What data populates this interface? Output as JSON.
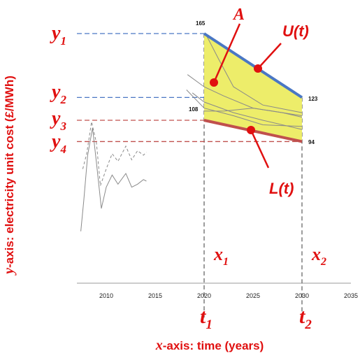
{
  "chart_data": {
    "type": "line",
    "xlabel_prefix": "x",
    "xlabel_rest": "-axis: time (years)",
    "ylabel_prefix": "y",
    "ylabel_rest": "-axis: electricity unit cost (£/MWh)",
    "xlim": [
      2007,
      2035
    ],
    "x_ticks": [
      "2010",
      "2015",
      "2020",
      "2025",
      "2030",
      "2035"
    ],
    "upper_bound": {
      "name": "U(t)",
      "x": [
        2020,
        2030
      ],
      "y": [
        165,
        123
      ],
      "color": "#4a77c4"
    },
    "lower_bound": {
      "name": "L(t)",
      "x": [
        2020,
        2030
      ],
      "y": [
        108,
        94
      ],
      "color": "#c0504d"
    },
    "region": {
      "name": "A",
      "color": "#eded6a"
    },
    "value_labels": [
      "165",
      "123",
      "108",
      "94"
    ],
    "y_levels": [
      {
        "symbol": "y",
        "sub": "1",
        "value": 165
      },
      {
        "symbol": "y",
        "sub": "2",
        "value": 123
      },
      {
        "symbol": "y",
        "sub": "3",
        "value": 108
      },
      {
        "symbol": "y",
        "sub": "4",
        "value": 94
      }
    ],
    "x_markers": [
      {
        "symbol": "x",
        "sub": "1",
        "value": 2020
      },
      {
        "symbol": "x",
        "sub": "2",
        "value": 2030
      }
    ],
    "t_markers": [
      {
        "symbol": "t",
        "sub": "1",
        "value": 2020
      },
      {
        "symbol": "t",
        "sub": "2",
        "value": 2030
      }
    ],
    "grey_projections": [
      {
        "x": [
          2018.3,
          2020,
          2022,
          2025,
          2030
        ],
        "y": [
          138,
          130,
          124,
          116,
          111
        ]
      },
      {
        "x": [
          2018.2,
          2020,
          2023,
          2026,
          2030
        ],
        "y": [
          128,
          116,
          111,
          105,
          104
        ]
      },
      {
        "x": [
          2018.8,
          2020,
          2023,
          2026,
          2030
        ],
        "y": [
          126,
          120,
          113,
          108,
          102
        ]
      },
      {
        "x": [
          2020.3,
          2021.5,
          2023,
          2026,
          2030
        ],
        "y": [
          163,
          148,
          130,
          118,
          113
        ]
      },
      {
        "x": [
          2020,
          2022,
          2025,
          2028,
          2030
        ],
        "y": [
          114,
          114,
          116,
          113,
          110
        ]
      }
    ],
    "grey_history": [
      {
        "x": [
          2007.4,
          2007.7,
          2008.1,
          2008.6,
          2009.0,
          2009.5,
          2010.0,
          2010.6,
          2011.2,
          2012.0,
          2012.6,
          2013.2,
          2013.8,
          2014.1
        ],
        "y": [
          35,
          55,
          85,
          103,
          80,
          50,
          64,
          72,
          66,
          73,
          64,
          66,
          69,
          68
        ],
        "dash": false
      },
      {
        "x": [
          2007.6,
          2008.0,
          2008.5,
          2009.0,
          2009.4,
          2010.0,
          2010.6,
          2011.2,
          2012.0,
          2012.6,
          2013.2,
          2013.8,
          2014.1
        ],
        "y": [
          76,
          86,
          107,
          93,
          65,
          76,
          86,
          81,
          91,
          82,
          88,
          85,
          87
        ],
        "dash": true
      }
    ]
  }
}
